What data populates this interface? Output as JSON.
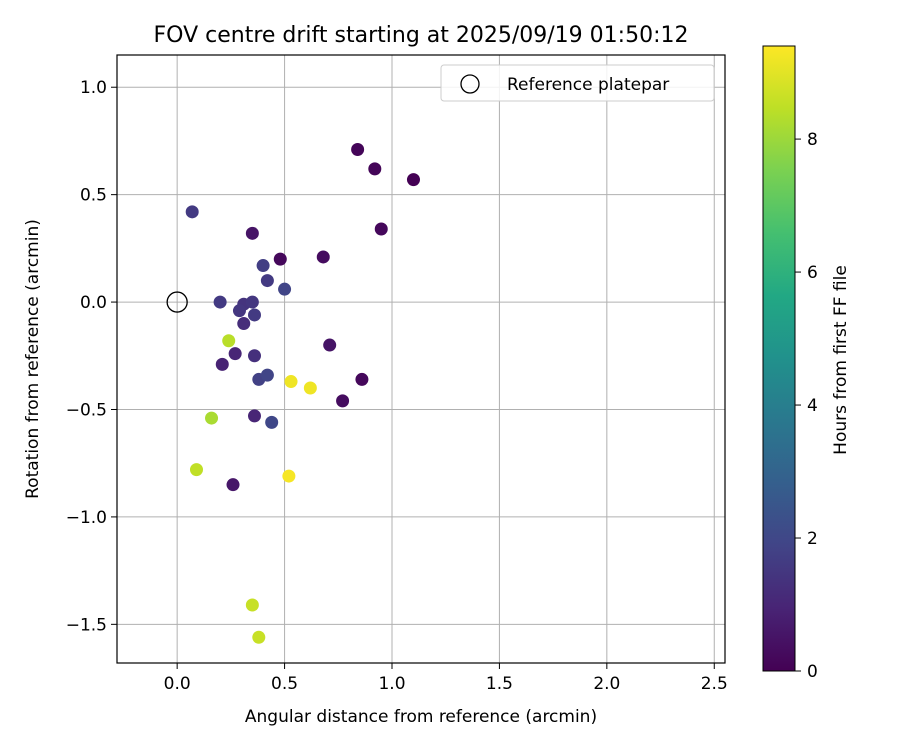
{
  "chart_data": {
    "type": "scatter",
    "title": "FOV centre drift starting at 2025/09/19 01:50:12",
    "xlabel": "Angular distance from reference (arcmin)",
    "ylabel": "Rotation from reference (arcmin)",
    "xlim": [
      -0.28,
      2.55
    ],
    "ylim": [
      -1.68,
      1.15
    ],
    "xticks": [
      0.0,
      0.5,
      1.0,
      1.5,
      2.0,
      2.5
    ],
    "xtick_labels": [
      "0.0",
      "0.5",
      "1.0",
      "1.5",
      "2.0",
      "2.5"
    ],
    "yticks": [
      1.0,
      0.5,
      0.0,
      -0.5,
      -1.0,
      -1.5
    ],
    "ytick_labels": [
      "1.0",
      "0.5",
      "0.0",
      "−0.5",
      "−1.0",
      "−1.5"
    ],
    "grid": true,
    "legend": {
      "position": "top-right",
      "entries": [
        "Reference platepar"
      ]
    },
    "reference_point": {
      "x": 0.0,
      "y": 0.0,
      "label": "Reference platepar",
      "marker": "open-circle"
    },
    "colorbar": {
      "label": "Hours from first FF file",
      "min": 0,
      "max": 9.4,
      "ticks": [
        0,
        2,
        4,
        6,
        8
      ],
      "tick_labels": [
        "0",
        "2",
        "4",
        "6",
        "8"
      ],
      "colormap": "viridis"
    },
    "points": [
      {
        "x": 0.84,
        "y": 0.71,
        "hours": 0.1
      },
      {
        "x": 0.92,
        "y": 0.62,
        "hours": 0.1
      },
      {
        "x": 1.1,
        "y": 0.57,
        "hours": 0.0
      },
      {
        "x": 0.95,
        "y": 0.34,
        "hours": 0.2
      },
      {
        "x": 0.07,
        "y": 0.42,
        "hours": 1.6
      },
      {
        "x": 0.35,
        "y": 0.32,
        "hours": 0.5
      },
      {
        "x": 0.48,
        "y": 0.2,
        "hours": 0.2
      },
      {
        "x": 0.68,
        "y": 0.21,
        "hours": 0.3
      },
      {
        "x": 0.4,
        "y": 0.17,
        "hours": 1.7
      },
      {
        "x": 0.42,
        "y": 0.1,
        "hours": 1.6
      },
      {
        "x": 0.5,
        "y": 0.06,
        "hours": 1.9
      },
      {
        "x": 0.2,
        "y": 0.0,
        "hours": 1.6
      },
      {
        "x": 0.31,
        "y": -0.01,
        "hours": 1.4
      },
      {
        "x": 0.35,
        "y": 0.0,
        "hours": 1.5
      },
      {
        "x": 0.29,
        "y": -0.04,
        "hours": 1.5
      },
      {
        "x": 0.36,
        "y": -0.06,
        "hours": 1.6
      },
      {
        "x": 0.31,
        "y": -0.1,
        "hours": 1.2
      },
      {
        "x": 0.24,
        "y": -0.18,
        "hours": 8.4
      },
      {
        "x": 0.27,
        "y": -0.24,
        "hours": 1.0
      },
      {
        "x": 0.36,
        "y": -0.25,
        "hours": 1.3
      },
      {
        "x": 0.71,
        "y": -0.2,
        "hours": 0.5
      },
      {
        "x": 0.21,
        "y": -0.29,
        "hours": 0.9
      },
      {
        "x": 0.38,
        "y": -0.36,
        "hours": 1.8
      },
      {
        "x": 0.42,
        "y": -0.34,
        "hours": 1.9
      },
      {
        "x": 0.53,
        "y": -0.37,
        "hours": 9.2
      },
      {
        "x": 0.62,
        "y": -0.4,
        "hours": 9.2
      },
      {
        "x": 0.86,
        "y": -0.36,
        "hours": 0.2
      },
      {
        "x": 0.77,
        "y": -0.46,
        "hours": 0.3
      },
      {
        "x": 0.36,
        "y": -0.53,
        "hours": 1.0
      },
      {
        "x": 0.44,
        "y": -0.56,
        "hours": 2.0
      },
      {
        "x": 0.16,
        "y": -0.54,
        "hours": 8.2
      },
      {
        "x": 0.09,
        "y": -0.78,
        "hours": 8.5
      },
      {
        "x": 0.52,
        "y": -0.81,
        "hours": 9.3
      },
      {
        "x": 0.26,
        "y": -0.85,
        "hours": 0.6
      },
      {
        "x": 0.35,
        "y": -1.41,
        "hours": 8.6
      },
      {
        "x": 0.38,
        "y": -1.56,
        "hours": 8.6
      }
    ]
  }
}
